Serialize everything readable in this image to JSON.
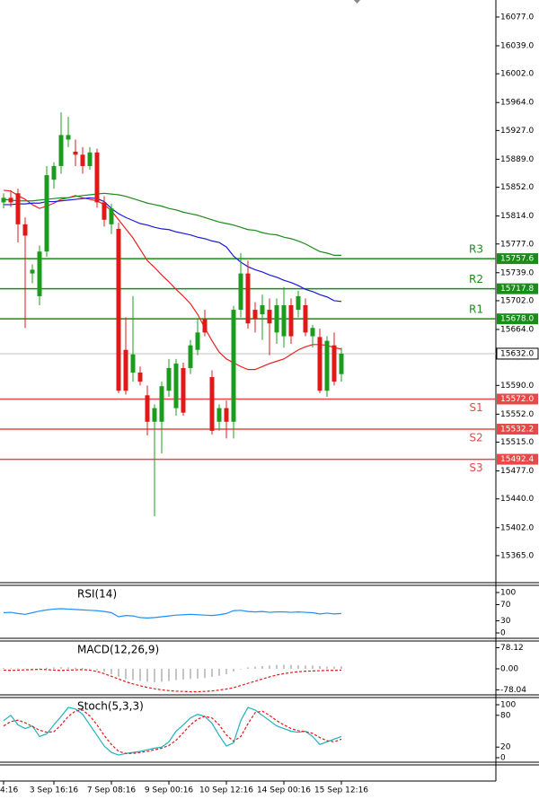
{
  "chart_data": [
    {
      "type": "candlestick",
      "categories": [
        "4:16",
        null,
        null,
        null,
        null,
        null,
        null,
        "3 Sep 16:16",
        null,
        null,
        null,
        null,
        null,
        null,
        null,
        "7 Sep 08:16",
        null,
        null,
        null,
        null,
        null,
        null,
        null,
        "9 Sep 00:16",
        null,
        null,
        null,
        null,
        null,
        null,
        null,
        "10 Sep 12:16",
        null,
        null,
        null,
        null,
        null,
        null,
        null,
        "14 Sep 00:16",
        null,
        null,
        null,
        null,
        null,
        null,
        null,
        "15 Sep 12:16"
      ],
      "open": [
        15832,
        15838,
        15844,
        15803,
        15738,
        15708,
        15767,
        15862,
        15880,
        15915,
        15899,
        15895,
        15880,
        15898,
        15832,
        15803,
        15797,
        15637,
        15607,
        15607,
        15577,
        15542,
        15542,
        15583,
        15560,
        15613,
        15613,
        15637,
        15678,
        15601,
        15542,
        15560,
        15542,
        15690,
        15738,
        15690,
        15684,
        15690,
        15660,
        15655,
        15696,
        15690,
        15696,
        15655,
        15654,
        15583,
        15643,
        15605
      ],
      "high": [
        15844,
        15848,
        15850,
        15812,
        15750,
        15775,
        15880,
        15885,
        15951,
        15945,
        15915,
        15905,
        15905,
        15903,
        15840,
        15830,
        15805,
        15680,
        15708,
        15615,
        15590,
        15565,
        15595,
        15625,
        15625,
        15620,
        15650,
        15678,
        15690,
        15610,
        15565,
        15570,
        15695,
        15765,
        15755,
        15700,
        15710,
        15705,
        15705,
        15720,
        15705,
        15715,
        15705,
        15670,
        15665,
        15655,
        15660,
        15640
      ],
      "low": [
        15824,
        15826,
        15779,
        15666,
        15725,
        15696,
        15760,
        15850,
        15870,
        15905,
        15880,
        15870,
        15875,
        15825,
        15800,
        15790,
        15580,
        15578,
        15595,
        15590,
        15524,
        15417,
        15500,
        15575,
        15550,
        15550,
        15605,
        15630,
        15655,
        15525,
        15530,
        15520,
        15520,
        15680,
        15665,
        15660,
        15650,
        15630,
        15645,
        15640,
        15645,
        15680,
        15655,
        15640,
        15580,
        15575,
        15590,
        15595
      ],
      "close": [
        15838,
        15832,
        15803,
        15788,
        15743,
        15767,
        15868,
        15880,
        15921,
        15921,
        15895,
        15880,
        15898,
        15832,
        15809,
        15824,
        15583,
        15583,
        15631,
        15595,
        15542,
        15560,
        15589,
        15613,
        15619,
        15554,
        15643,
        15660,
        15660,
        15530,
        15560,
        15542,
        15690,
        15738,
        15672,
        15678,
        15696,
        15672,
        15696,
        15696,
        15655,
        15708,
        15660,
        15666,
        15583,
        15649,
        15595,
        15632
      ],
      "up_color": "#1c9c1c",
      "down_color": "#e01818",
      "ylim": [
        15330.5,
        16099.5
      ],
      "yticks": [
        {
          "value": 16077,
          "label": "16077.0"
        },
        {
          "value": 16039,
          "label": "16039.0"
        },
        {
          "value": 16002,
          "label": "16002.0"
        },
        {
          "value": 15964,
          "label": "15964.0"
        },
        {
          "value": 15927,
          "label": "15927.0"
        },
        {
          "value": 15889,
          "label": "15889.0"
        },
        {
          "value": 15852,
          "label": "15852.0"
        },
        {
          "value": 15814,
          "label": "15814.0"
        },
        {
          "value": 15777,
          "label": "15777.0"
        },
        {
          "value": 15739,
          "label": "15739.0"
        },
        {
          "value": 15702,
          "label": "15702.0"
        },
        {
          "value": 15664,
          "label": "15664.0"
        },
        {
          "value": 15627,
          "label": "15627.0"
        },
        {
          "value": 15590,
          "label": "15590.0"
        },
        {
          "value": 15552,
          "label": "15552.0"
        },
        {
          "value": 15515,
          "label": "15515.0"
        },
        {
          "value": 15477,
          "label": "15477.0"
        },
        {
          "value": 15440,
          "label": "15440.0"
        },
        {
          "value": 15402,
          "label": "15402.0"
        },
        {
          "value": 15365,
          "label": "15365.0"
        }
      ],
      "lines": [
        {
          "color": "#e82020",
          "values": [
            15848,
            15847,
            15841,
            15836,
            15829,
            15824,
            15827,
            15831,
            15836,
            15838,
            15841,
            15838,
            15836,
            15834,
            15829,
            15821,
            15809,
            15797,
            15785,
            15770,
            15755,
            15746,
            15736,
            15727,
            15717,
            15708,
            15698,
            15684,
            15666,
            15649,
            15634,
            15625,
            15620,
            15615,
            15611,
            15611,
            15615,
            15619,
            15622,
            15625,
            15631,
            15637,
            15641,
            15644,
            15644,
            15643,
            15640,
            15638
          ]
        },
        {
          "color": "#1a1ae0",
          "values": [
            15829,
            15829,
            15830,
            15830,
            15831,
            15831,
            15833,
            15833,
            15834,
            15835,
            15836,
            15837,
            15838,
            15837,
            15833,
            15824,
            15817,
            15812,
            15808,
            15804,
            15802,
            15799,
            15797,
            15796,
            15793,
            15791,
            15789,
            15786,
            15784,
            15781,
            15779,
            15773,
            15761,
            15753,
            15747,
            15743,
            15740,
            15736,
            15733,
            15729,
            15726,
            15722,
            15717,
            15714,
            15710,
            15707,
            15702,
            15701
          ]
        },
        {
          "color": "#1a8c1a",
          "values": [
            15836,
            15835,
            15834,
            15834,
            15834,
            15835,
            15836,
            15837,
            15838,
            15838,
            15840,
            15841,
            15842,
            15843,
            15844,
            15843,
            15842,
            15840,
            15837,
            15834,
            15831,
            15829,
            15827,
            15824,
            15822,
            15819,
            15817,
            15815,
            15812,
            15809,
            15806,
            15804,
            15802,
            15799,
            15796,
            15795,
            15792,
            15790,
            15789,
            15786,
            15784,
            15781,
            15777,
            15772,
            15767,
            15765,
            15762,
            15762
          ]
        }
      ],
      "levels": [
        {
          "label": "R3",
          "value": 15757.6,
          "color": "#1a8c1a"
        },
        {
          "label": "R2",
          "value": 15717.8,
          "color": "#1a8c1a"
        },
        {
          "label": "R1",
          "value": 15678,
          "value_label": "15678.0",
          "color": "#1a8c1a"
        },
        {
          "label": "S1",
          "value": 15572,
          "value_label": "15572.0",
          "color": "#e84848"
        },
        {
          "label": "S2",
          "value": 15532.2,
          "color": "#e84848"
        },
        {
          "label": "S3",
          "value": 15492.4,
          "color": "#e84848"
        }
      ],
      "current": {
        "value": 15632,
        "value_label": "15632.0"
      }
    },
    {
      "type": "line",
      "title": "RSI(14)",
      "ylim": [
        0,
        100
      ],
      "yticks": [
        100,
        70,
        30,
        0
      ],
      "series": [
        {
          "color": "#1e90ff",
          "values": [
            50,
            51,
            48,
            46,
            50,
            54,
            57,
            59,
            60,
            59,
            58,
            57,
            56,
            55,
            53,
            50,
            40,
            43,
            42,
            38,
            37,
            38,
            40,
            42,
            44,
            45,
            46,
            45,
            44,
            43,
            45,
            48,
            55,
            56,
            53,
            52,
            53,
            51,
            52,
            52,
            51,
            52,
            51,
            50,
            47,
            49,
            47,
            48
          ]
        }
      ]
    },
    {
      "type": "macd",
      "title": "MACD(12,26,9)",
      "ylim": [
        -100,
        103
      ],
      "yticks": [
        78.12,
        {
          "value": 0,
          "label": "0.00"
        },
        -78.04
      ],
      "histogram": {
        "color": "#b0b0b0",
        "values": [
          3,
          2,
          2,
          1,
          1,
          2,
          4,
          5,
          6,
          5,
          4,
          3,
          1,
          -5,
          -10,
          -20,
          -30,
          -38,
          -42,
          -45,
          -48,
          -50,
          -48,
          -45,
          -42,
          -40,
          -38,
          -36,
          -34,
          -30,
          -26,
          -20,
          -10,
          -2,
          5,
          8,
          10,
          12,
          14,
          15,
          14,
          13,
          12,
          12,
          10,
          8,
          8,
          9
        ]
      },
      "signal": {
        "color": "#e01818",
        "values": [
          -5,
          -6,
          -5,
          -4,
          -3,
          -2,
          -3,
          -5,
          -6,
          -5,
          -4,
          -3,
          -5,
          -10,
          -18,
          -28,
          -38,
          -48,
          -56,
          -63,
          -69,
          -74,
          -78,
          -81,
          -83,
          -84,
          -85,
          -85,
          -84,
          -82,
          -79,
          -75,
          -70,
          -62,
          -54,
          -46,
          -38,
          -30,
          -23,
          -18,
          -14,
          -11,
          -9,
          -8,
          -7,
          -6,
          -6,
          -5
        ]
      }
    },
    {
      "type": "line",
      "title": "Stoch(5,3,3)",
      "ylim": [
        0,
        100
      ],
      "yticks": [
        100,
        80,
        20,
        0
      ],
      "series": [
        {
          "color": "#20b0c0",
          "values": [
            70,
            80,
            62,
            55,
            60,
            40,
            45,
            62,
            78,
            95,
            92,
            82,
            62,
            42,
            22,
            10,
            5,
            8,
            10,
            12,
            15,
            18,
            20,
            30,
            50,
            62,
            75,
            82,
            78,
            65,
            42,
            22,
            28,
            70,
            95,
            90,
            80,
            70,
            60,
            55,
            50,
            48,
            50,
            40,
            25,
            30,
            35,
            40
          ]
        },
        {
          "color": "#e01818",
          "dashed": true,
          "values": [
            60,
            68,
            71,
            66,
            59,
            52,
            48,
            49,
            62,
            78,
            88,
            90,
            79,
            62,
            42,
            25,
            12,
            8,
            8,
            10,
            12,
            15,
            18,
            23,
            33,
            47,
            62,
            73,
            78,
            75,
            62,
            43,
            31,
            40,
            64,
            85,
            88,
            80,
            70,
            62,
            55,
            51,
            49,
            46,
            38,
            32,
            30,
            35
          ]
        }
      ]
    }
  ]
}
